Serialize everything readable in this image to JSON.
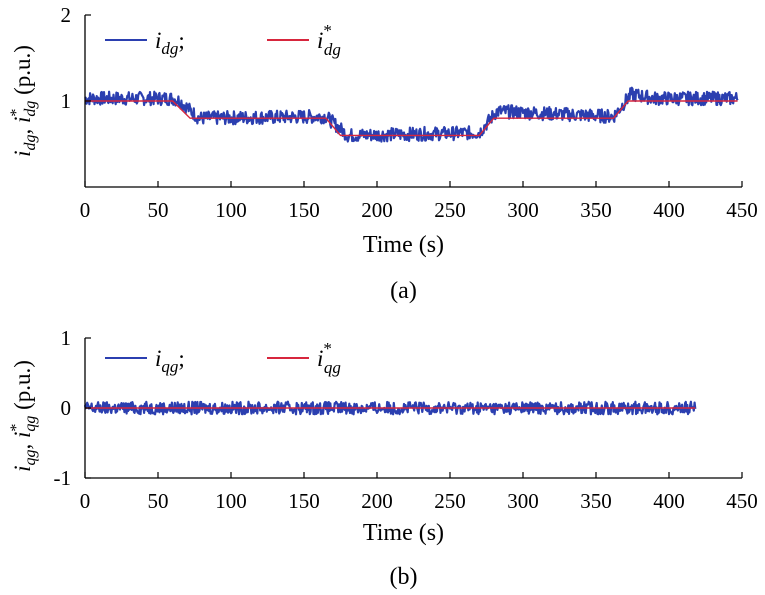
{
  "chart_data": [
    {
      "panel": "a",
      "type": "line",
      "caption": "(a)",
      "xlabel": "Time (s)",
      "ylabel_parts": [
        "i",
        "dg",
        ", i",
        "*",
        "dg",
        " (p.u.)"
      ],
      "xlim": [
        0,
        450
      ],
      "ylim": [
        0,
        2
      ],
      "xticks": [
        0,
        50,
        100,
        150,
        200,
        250,
        300,
        350,
        400,
        450
      ],
      "yticks": [
        1,
        2
      ],
      "legend_position": "top-left",
      "series": [
        {
          "name": "i_dg;",
          "legend_base": "i",
          "legend_sub": "dg",
          "legend_suffix": ";",
          "color": "#2b3fb0",
          "noise_band": 0.08,
          "x": [
            0,
            60,
            65,
            78,
            165,
            180,
            270,
            282,
            362,
            374,
            390,
            447
          ],
          "y": [
            1.03,
            1.03,
            1.0,
            0.8,
            0.82,
            0.6,
            0.63,
            0.88,
            0.82,
            1.08,
            1.03,
            1.03
          ]
        },
        {
          "name": "i*_dg",
          "legend_base": "i",
          "legend_sup": "*",
          "legend_sub": "dg",
          "color": "#d7263d",
          "x": [
            0,
            60,
            72,
            165,
            175,
            270,
            280,
            362,
            372,
            447
          ],
          "y": [
            1.0,
            1.0,
            0.8,
            0.8,
            0.6,
            0.6,
            0.8,
            0.8,
            1.0,
            1.0
          ]
        }
      ]
    },
    {
      "panel": "b",
      "type": "line",
      "caption": "(b)",
      "xlabel": "Time (s)",
      "ylabel_parts": [
        "i",
        "qg",
        ", i",
        "*",
        "qg",
        " (p.u.)"
      ],
      "xlim": [
        0,
        450
      ],
      "ylim": [
        -1,
        1
      ],
      "xticks": [
        0,
        50,
        100,
        150,
        200,
        250,
        300,
        350,
        400,
        450
      ],
      "yticks": [
        -1,
        0,
        1
      ],
      "legend_position": "top-left",
      "series": [
        {
          "name": "i_qg;",
          "legend_base": "i",
          "legend_sub": "qg",
          "legend_suffix": ";",
          "color": "#2b3fb0",
          "noise_band": 0.09,
          "x": [
            0,
            418
          ],
          "y": [
            0.0,
            0.0
          ]
        },
        {
          "name": "i*_qg",
          "legend_base": "i",
          "legend_sup": "*",
          "legend_sub": "qg",
          "color": "#d7263d",
          "x": [
            0,
            418
          ],
          "y": [
            0.0,
            0.0
          ]
        }
      ]
    }
  ]
}
